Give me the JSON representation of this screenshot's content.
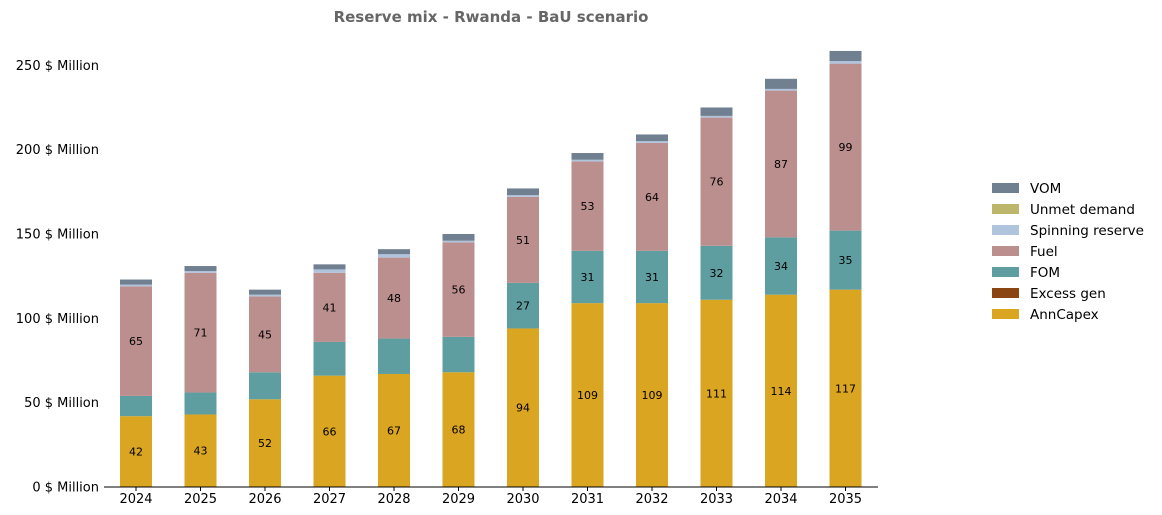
{
  "chart_data": {
    "type": "bar",
    "stacked": true,
    "title": "Reserve mix - Rwanda - BaU scenario",
    "xlabel": "",
    "ylabel": "",
    "categories": [
      "2024",
      "2025",
      "2026",
      "2027",
      "2028",
      "2029",
      "2030",
      "2031",
      "2032",
      "2033",
      "2034",
      "2035"
    ],
    "ylim": [
      0,
      265
    ],
    "yticks": [
      0,
      50,
      100,
      150,
      200,
      250
    ],
    "ytick_suffix": " $ Million",
    "legend_position": "right",
    "series": [
      {
        "name": "AnnCapex",
        "color": "#DAA520",
        "values": [
          42,
          43,
          52,
          66,
          67,
          68,
          94,
          109,
          109,
          111,
          114,
          117
        ],
        "labeled": true
      },
      {
        "name": "Excess gen",
        "color": "#8B4513",
        "values": [
          0,
          0,
          0,
          0,
          0,
          0,
          0,
          0,
          0,
          0,
          0,
          0
        ],
        "labeled": false
      },
      {
        "name": "FOM",
        "color": "#5F9EA0",
        "values": [
          12,
          13,
          16,
          20,
          21,
          21,
          27,
          31,
          31,
          32,
          34,
          35
        ],
        "labeled": true,
        "label_min": 25
      },
      {
        "name": "Fuel",
        "color": "#BC8F8F",
        "values": [
          65,
          71,
          45,
          41,
          48,
          56,
          51,
          53,
          64,
          76,
          87,
          99
        ],
        "labeled": true
      },
      {
        "name": "Spinning reserve",
        "color": "#B0C4DE",
        "values": [
          1,
          1,
          1,
          2,
          2,
          1,
          1,
          1,
          1,
          1,
          1,
          1.5
        ],
        "labeled": false
      },
      {
        "name": "Unmet demand",
        "color": "#BDB76B",
        "values": [
          0,
          0,
          0,
          0,
          0,
          0,
          0,
          0,
          0,
          0,
          0,
          0
        ],
        "labeled": false
      },
      {
        "name": "VOM",
        "color": "#708090",
        "values": [
          3,
          3,
          3,
          3,
          3,
          4,
          4,
          4,
          4,
          5,
          6,
          6
        ],
        "labeled": false
      }
    ],
    "legend_order": [
      "VOM",
      "Unmet demand",
      "Spinning reserve",
      "Fuel",
      "FOM",
      "Excess gen",
      "AnnCapex"
    ]
  }
}
